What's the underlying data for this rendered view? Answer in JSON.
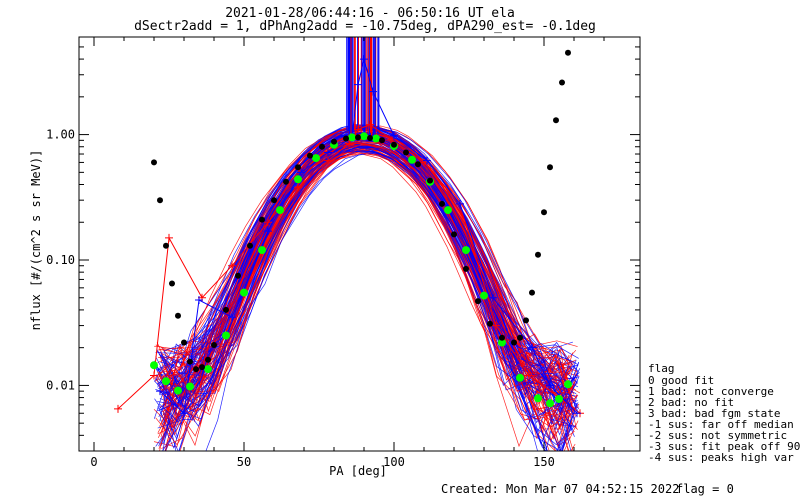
{
  "title_lines": [
    "2021-01-28/06:44:16 - 06:50:16 UT ela",
    "dSectr2add = 1, dPhAng2add = -10.75deg, dPA290_est=  -0.1deg"
  ],
  "footer": {
    "created": "Created: Mon Mar 07 04:52:15 2022",
    "flag": "flag = 0"
  },
  "legend": {
    "title": "flag",
    "items": [
      " 0 good fit",
      " 1 bad: not converge",
      " 2 bad: no fit",
      " 3 bad: bad fgm state",
      "-1 sus: far off median",
      "-2 sus: not symmetric",
      "-3 sus: fit peak off 90",
      "-4 sus: peaks high var"
    ]
  },
  "colors": {
    "red": "#ff0000",
    "blue": "#0000ff",
    "green": "#00ff00",
    "black": "#000000"
  },
  "chart_data": {
    "type": "line",
    "xlabel": "PA [deg]",
    "ylabel": "nflux [#/(cm^2 s sr MeV)]",
    "xlim": [
      -5,
      182
    ],
    "ylim": [
      0.003,
      6.0
    ],
    "yscale": "log",
    "x_ticks": [
      0,
      50,
      100,
      150
    ],
    "x_tick_labels": [
      "0",
      "50",
      "100",
      "150"
    ],
    "y_ticks": [
      0.01,
      0.1,
      1.0
    ],
    "y_tick_labels": [
      "0.01",
      "0.10",
      "1.00"
    ],
    "grid": false,
    "legend_position": "right-outside",
    "series": [
      {
        "color": "red",
        "marker": "+",
        "x": [
          8,
          20,
          25,
          36,
          46,
          58,
          68,
          78,
          85,
          88,
          92,
          99,
          110,
          122,
          134,
          145,
          155,
          162
        ],
        "y": [
          0.0065,
          0.012,
          0.15,
          0.05,
          0.09,
          0.2,
          0.38,
          0.62,
          0.85,
          1.1,
          1.2,
          0.92,
          0.6,
          0.28,
          0.03,
          0.012,
          0.008,
          0.006
        ]
      },
      {
        "color": "blue",
        "marker": "+",
        "x": [
          22,
          30,
          35,
          46,
          58,
          69,
          78,
          86,
          88,
          90,
          93,
          100,
          111,
          122,
          133,
          146,
          152,
          161
        ],
        "y": [
          0.009,
          0.006,
          0.048,
          0.035,
          0.17,
          0.5,
          0.72,
          0.95,
          2.5,
          4.0,
          2.2,
          0.98,
          0.62,
          0.28,
          0.05,
          0.02,
          0.01,
          0.006
        ]
      },
      {
        "color": "green",
        "marker": "filled-circle",
        "x": [
          20,
          24,
          28,
          32,
          38,
          44,
          50,
          56,
          62,
          68,
          74,
          80,
          86,
          90,
          94,
          100,
          106,
          112,
          118,
          124,
          130,
          136,
          142,
          148,
          152,
          155,
          158
        ],
        "y": [
          0.0145,
          0.0108,
          0.0091,
          0.0098,
          0.0135,
          0.025,
          0.055,
          0.12,
          0.25,
          0.44,
          0.65,
          0.83,
          0.95,
          0.97,
          0.93,
          0.81,
          0.63,
          0.42,
          0.25,
          0.12,
          0.052,
          0.022,
          0.0115,
          0.0079,
          0.0072,
          0.0078,
          0.0102
        ]
      },
      {
        "color": "black",
        "marker": "filled-circle",
        "x": [
          20,
          22,
          24,
          26,
          28,
          30,
          32,
          34,
          36,
          38,
          40,
          44,
          48,
          52,
          56,
          60,
          64,
          68,
          72,
          76,
          80,
          84,
          88,
          92,
          96,
          100,
          104,
          108,
          112,
          116,
          120,
          124,
          128,
          132,
          136,
          140,
          142,
          144,
          146,
          148,
          150,
          152,
          154,
          156,
          158
        ],
        "y": [
          0.6,
          0.3,
          0.13,
          0.065,
          0.036,
          0.022,
          0.0155,
          0.0135,
          0.014,
          0.016,
          0.021,
          0.04,
          0.075,
          0.13,
          0.21,
          0.3,
          0.42,
          0.55,
          0.68,
          0.8,
          0.88,
          0.93,
          0.95,
          0.94,
          0.9,
          0.83,
          0.72,
          0.58,
          0.43,
          0.28,
          0.16,
          0.085,
          0.047,
          0.031,
          0.024,
          0.022,
          0.024,
          0.033,
          0.055,
          0.11,
          0.24,
          0.55,
          1.3,
          2.6,
          4.5
        ]
      }
    ]
  }
}
